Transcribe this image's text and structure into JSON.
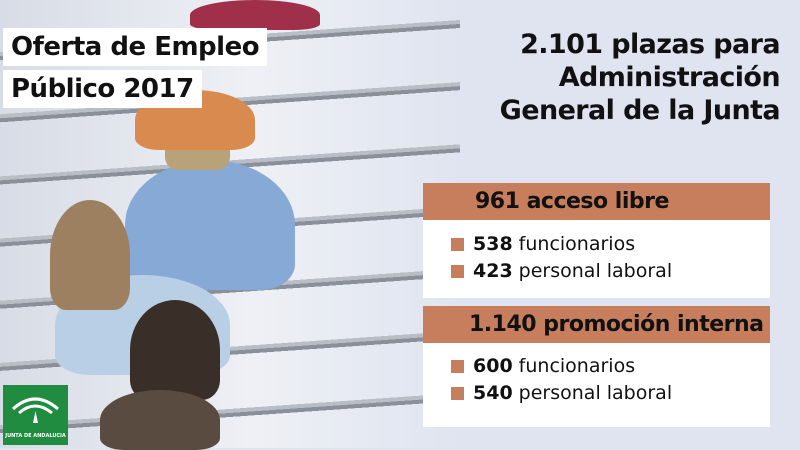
{
  "title": {
    "line1": "Oferta de Empleo",
    "line2": "Público 2017"
  },
  "headline": {
    "line1": "2.101 plazas para",
    "line2": "Administración",
    "line3": "General de la Junta"
  },
  "sections": [
    {
      "header": "961 acceso libre",
      "items": [
        {
          "count": "538",
          "label": "funcionarios"
        },
        {
          "count": "423",
          "label": "personal laboral"
        }
      ]
    },
    {
      "header": "1.140 promoción interna",
      "items": [
        {
          "count": "600",
          "label": "funcionarios"
        },
        {
          "count": "540",
          "label": "personal laboral"
        }
      ]
    }
  ],
  "logo": {
    "text": "JUNTA DE ANDALUCIA"
  },
  "colors": {
    "accent": "#c67e5c",
    "background": "#dfe4f0",
    "logo_green": "#1f8c3f"
  }
}
